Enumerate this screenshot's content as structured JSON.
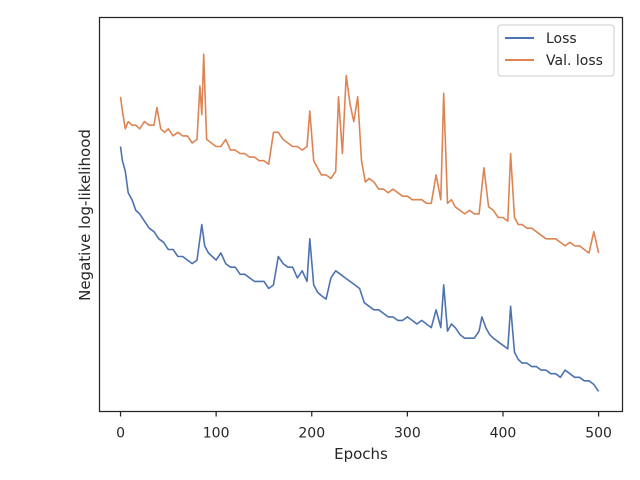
{
  "chart_data": {
    "type": "line",
    "title": "",
    "xlabel": "Epochs",
    "ylabel": "Negative log-likelihood",
    "xlim": [
      -22,
      525
    ],
    "ylim": [
      0,
      100
    ],
    "y_ticks_shown": false,
    "x_ticks": [
      {
        "value": 0,
        "label": "0"
      },
      {
        "value": 100,
        "label": "100"
      },
      {
        "value": 200,
        "label": "200"
      },
      {
        "value": 300,
        "label": "300"
      },
      {
        "value": 400,
        "label": "400"
      },
      {
        "value": 500,
        "label": "500"
      }
    ],
    "grid": false,
    "legend_position": "top-right",
    "series": [
      {
        "name": "Loss",
        "color": "#4c72b0",
        "x": [
          0,
          2,
          5,
          8,
          12,
          16,
          20,
          25,
          30,
          35,
          40,
          45,
          50,
          55,
          60,
          65,
          70,
          75,
          80,
          85,
          88,
          92,
          96,
          100,
          105,
          110,
          115,
          120,
          125,
          130,
          135,
          140,
          145,
          150,
          155,
          160,
          165,
          170,
          175,
          180,
          185,
          190,
          195,
          198,
          202,
          206,
          210,
          215,
          220,
          225,
          230,
          235,
          240,
          245,
          250,
          255,
          260,
          265,
          270,
          275,
          280,
          285,
          290,
          295,
          300,
          305,
          310,
          315,
          320,
          325,
          330,
          335,
          338,
          342,
          346,
          350,
          355,
          360,
          365,
          370,
          375,
          378,
          382,
          386,
          390,
          395,
          400,
          405,
          408,
          412,
          416,
          420,
          425,
          430,
          435,
          440,
          445,
          450,
          455,
          460,
          465,
          470,
          475,
          480,
          485,
          490,
          495,
          500
        ],
        "values": [
          70,
          66,
          63,
          57,
          55,
          52,
          51,
          49,
          47,
          46,
          44,
          43,
          41,
          41,
          39,
          39,
          38,
          37,
          38,
          48,
          42,
          40,
          39,
          38,
          40,
          37,
          36,
          36,
          34,
          34,
          33,
          32,
          32,
          32,
          30,
          31,
          39,
          37,
          36,
          36,
          33,
          35,
          32,
          44,
          31,
          29,
          28,
          27,
          33,
          35,
          34,
          33,
          32,
          31,
          30,
          26,
          25,
          24,
          24,
          23,
          22,
          22,
          21,
          21,
          22,
          21,
          20,
          21,
          20,
          19,
          24,
          19,
          31,
          18,
          20,
          19,
          17,
          16,
          16,
          16,
          18,
          22,
          19,
          17,
          16,
          15,
          14,
          13,
          25,
          12,
          10,
          9,
          9,
          8,
          8,
          7,
          7,
          6,
          6,
          5,
          7,
          6,
          5,
          5,
          4,
          4,
          3,
          1
        ]
      },
      {
        "name": "Val. loss",
        "color": "#dd8452",
        "x": [
          0,
          2,
          5,
          8,
          12,
          16,
          20,
          25,
          30,
          35,
          38,
          42,
          46,
          50,
          55,
          60,
          65,
          70,
          75,
          80,
          83,
          85,
          87,
          90,
          95,
          100,
          105,
          110,
          115,
          120,
          125,
          130,
          135,
          140,
          145,
          150,
          155,
          160,
          165,
          170,
          175,
          180,
          185,
          190,
          195,
          198,
          202,
          206,
          210,
          215,
          220,
          225,
          228,
          232,
          236,
          240,
          244,
          248,
          252,
          256,
          260,
          265,
          270,
          275,
          280,
          285,
          290,
          295,
          300,
          305,
          310,
          315,
          320,
          325,
          330,
          335,
          338,
          342,
          346,
          350,
          355,
          360,
          365,
          370,
          375,
          380,
          385,
          390,
          395,
          400,
          405,
          408,
          412,
          416,
          420,
          425,
          430,
          435,
          440,
          445,
          450,
          455,
          460,
          465,
          470,
          475,
          480,
          485,
          490,
          495,
          500
        ],
        "values": [
          84,
          80,
          75,
          77,
          76,
          76,
          75,
          77,
          76,
          76,
          81,
          75,
          74,
          75,
          73,
          74,
          73,
          73,
          71,
          72,
          87,
          79,
          96,
          72,
          71,
          70,
          70,
          72,
          69,
          69,
          68,
          68,
          67,
          67,
          66,
          66,
          65,
          74,
          74,
          72,
          71,
          70,
          70,
          69,
          70,
          80,
          66,
          64,
          62,
          62,
          61,
          63,
          84,
          68,
          90,
          82,
          77,
          84,
          66,
          60,
          61,
          60,
          58,
          58,
          57,
          58,
          57,
          56,
          56,
          55,
          55,
          55,
          54,
          54,
          62,
          55,
          85,
          54,
          55,
          53,
          52,
          51,
          52,
          51,
          51,
          64,
          53,
          52,
          50,
          50,
          49,
          68,
          50,
          48,
          48,
          47,
          47,
          46,
          45,
          44,
          44,
          44,
          43,
          42,
          43,
          42,
          42,
          41,
          40,
          46,
          40
        ]
      }
    ]
  }
}
